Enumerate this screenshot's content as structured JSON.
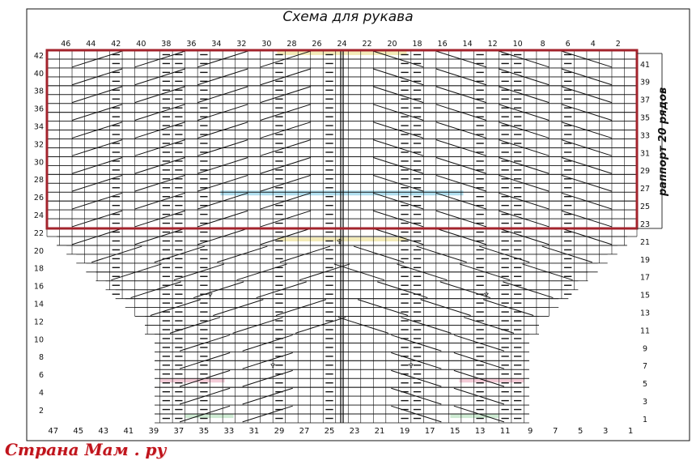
{
  "title": "Схема для рукава",
  "repeat_label": "раппорт 20 рядов",
  "watermark": "Страна Мам . ру",
  "colors": {
    "grid": "#111111",
    "repeat_frame": "#a3232c",
    "watermark": "#c0141c",
    "highlight_blue": "#8fd1e8",
    "highlight_yellow": "#efe39a",
    "highlight_pink": "#f0b7c8",
    "highlight_green": "#b9e2c0"
  },
  "top_column_numbers": [
    "46",
    "44",
    "42",
    "40",
    "38",
    "36",
    "34",
    "32",
    "30",
    "28",
    "26",
    "24",
    "22",
    "20",
    "18",
    "16",
    "14",
    "12",
    "10",
    "8",
    "6",
    "4",
    "2"
  ],
  "bottom_column_numbers": [
    "47",
    "45",
    "43",
    "41",
    "39",
    "37",
    "35",
    "33",
    "31",
    "29",
    "27",
    "25",
    "23",
    "21",
    "19",
    "17",
    "15",
    "13",
    "11",
    "9",
    "7",
    "5",
    "3",
    "1"
  ],
  "left_row_numbers": [
    "42",
    "40",
    "38",
    "36",
    "34",
    "32",
    "30",
    "28",
    "26",
    "24",
    "22",
    "20",
    "18",
    "16",
    "14",
    "12",
    "10",
    "8",
    "6",
    "4",
    "2"
  ],
  "right_row_numbers": [
    "41",
    "39",
    "37",
    "35",
    "33",
    "31",
    "29",
    "27",
    "25",
    "23",
    "21",
    "19",
    "17",
    "15",
    "13",
    "11",
    "9",
    "7",
    "5",
    "3",
    "1"
  ],
  "symbols": {
    "purl": "—",
    "decrease": "♆"
  }
}
